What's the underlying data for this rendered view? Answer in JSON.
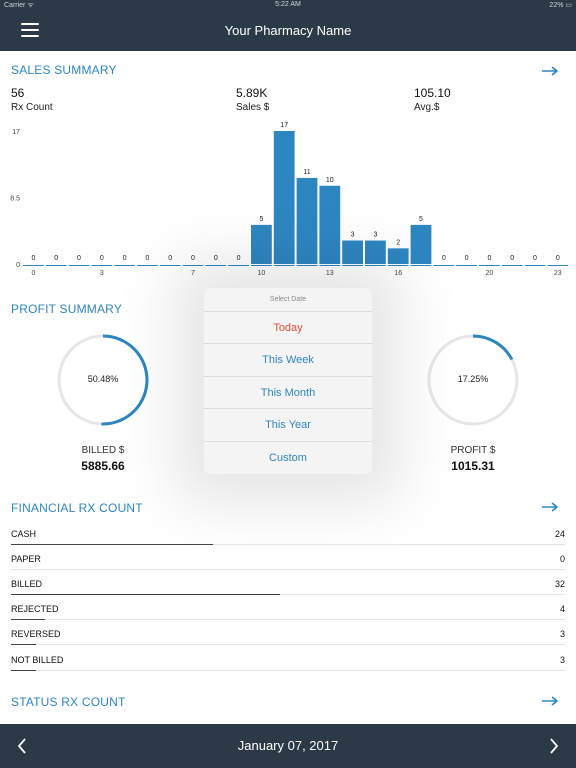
{
  "statusbar": {
    "carrier": "Carrier ᯤ",
    "time": "5:22 AM",
    "battery": "22% ▭"
  },
  "navbar": {
    "title": "Your Pharmacy Name"
  },
  "sales_summary": {
    "title": "SALES SUMMARY",
    "stats": [
      {
        "value": "56",
        "label": "Rx Count"
      },
      {
        "value": "5.89K",
        "label": "Sales $"
      },
      {
        "value": "105.10",
        "label": "Avg.$"
      }
    ]
  },
  "chart_data": {
    "type": "bar",
    "x": [
      0,
      1,
      2,
      3,
      4,
      5,
      6,
      7,
      8,
      9,
      10,
      11,
      12,
      13,
      14,
      15,
      16,
      17,
      18,
      19,
      20,
      21,
      22,
      23
    ],
    "values": [
      0,
      0,
      0,
      0,
      0,
      0,
      0,
      0,
      0,
      0,
      5,
      17,
      11,
      10,
      3,
      3,
      2,
      5,
      0,
      0,
      0,
      0,
      0,
      0
    ],
    "x_tick_labels": [
      "0",
      "3",
      "7",
      "10",
      "13",
      "16",
      "20",
      "23"
    ],
    "x_tick_positions": [
      0,
      3,
      7,
      10,
      13,
      16,
      20,
      23
    ],
    "y_tick_labels": [
      "0",
      "8.5",
      "17"
    ],
    "y_ticks": [
      0,
      8.5,
      17
    ],
    "ylim": [
      0,
      17
    ],
    "title": "",
    "xlabel": "",
    "ylabel": "",
    "bar_color": "#2e86c1"
  },
  "profit_summary": {
    "title": "PROFIT SUMMARY",
    "billed": {
      "percent_label": "50.48%",
      "fraction": 0.5048,
      "label": "BILLED $",
      "value": "5885.66"
    },
    "profit": {
      "percent_label": "17.25%",
      "fraction": 0.1725,
      "label": "PROFIT $",
      "value": "1015.31"
    },
    "ring_color": "#2e86c1"
  },
  "date_popup": {
    "title": "Select Date",
    "options": [
      "Today",
      "This Week",
      "This Month",
      "This Year",
      "Custom"
    ]
  },
  "financial_rx": {
    "title": "FINANCIAL RX COUNT",
    "rows": [
      {
        "label": "CASH",
        "count": "24",
        "fraction": 0.365
      },
      {
        "label": "PAPER",
        "count": "0",
        "fraction": 0
      },
      {
        "label": "BILLED",
        "count": "32",
        "fraction": 0.485
      },
      {
        "label": "REJECTED",
        "count": "4",
        "fraction": 0.061
      },
      {
        "label": "REVERSED",
        "count": "3",
        "fraction": 0.045
      },
      {
        "label": "NOT BILLED",
        "count": "3",
        "fraction": 0.045
      }
    ]
  },
  "status_rx": {
    "title": "STATUS RX COUNT"
  },
  "footer": {
    "date": "January 07, 2017"
  },
  "colors": {
    "accent": "#2e86c1",
    "bar_dark": "#2c3a47",
    "destructive": "#e74c3c"
  }
}
